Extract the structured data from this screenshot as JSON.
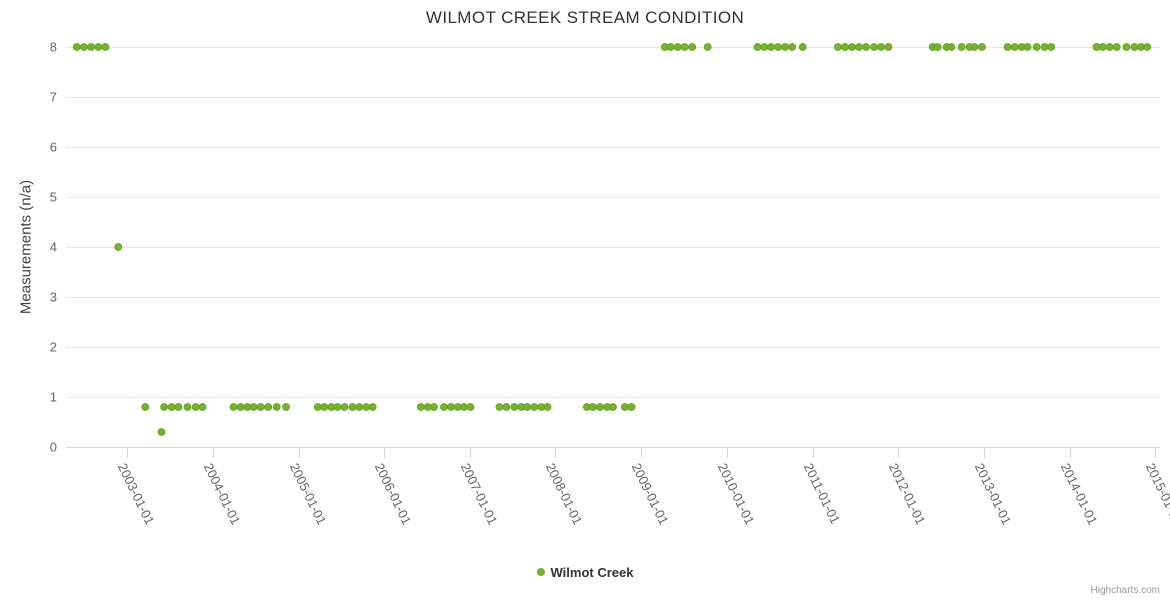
{
  "title": "WILMOT CREEK STREAM CONDITION",
  "y_axis": {
    "title": "Measurements (n/a)",
    "ticks": [
      0,
      1,
      2,
      3,
      4,
      5,
      6,
      7,
      8
    ]
  },
  "x_axis": {
    "tick_labels": [
      "2003-01-01",
      "2004-01-01",
      "2005-01-01",
      "2006-01-01",
      "2007-01-01",
      "2008-01-01",
      "2009-01-01",
      "2010-01-01",
      "2011-01-01",
      "2012-01-01",
      "2013-01-01",
      "2014-01-01",
      "2015-01-01"
    ]
  },
  "legend": {
    "label": "Wilmot Creek"
  },
  "credits": "Highcharts.com",
  "colors": {
    "point_fill": "#74b32b",
    "point_stroke": "#639a22",
    "grid_line": "#e6e6e6",
    "axis_line": "#ccd6eb",
    "title_text": "#333333",
    "axis_label": "#666666",
    "credits_text": "#999999"
  },
  "chart_data": {
    "type": "scatter",
    "title": "WILMOT CREEK STREAM CONDITION",
    "xlabel": "",
    "ylabel": "Measurements (n/a)",
    "ylim": [
      0,
      8
    ],
    "xlim": [
      "2002-04-17",
      "2015-01-19"
    ],
    "grid": true,
    "legend_position": "bottom-center",
    "series": [
      {
        "name": "Wilmot Creek",
        "color": "#74b32b",
        "points": [
          [
            "2002-06-01",
            8
          ],
          [
            "2002-07-01",
            8
          ],
          [
            "2002-08-01",
            8
          ],
          [
            "2002-09-01",
            8
          ],
          [
            "2002-10-01",
            8
          ],
          [
            "2002-11-25",
            4
          ],
          [
            "2003-03-20",
            0.8
          ],
          [
            "2003-05-28",
            0.3
          ],
          [
            "2003-06-08",
            0.8
          ],
          [
            "2003-07-10",
            0.8
          ],
          [
            "2003-08-08",
            0.8
          ],
          [
            "2003-09-16",
            0.8
          ],
          [
            "2003-10-21",
            0.8
          ],
          [
            "2003-11-19",
            0.8
          ],
          [
            "2004-03-30",
            0.8
          ],
          [
            "2004-04-29",
            0.8
          ],
          [
            "2004-05-28",
            0.8
          ],
          [
            "2004-06-24",
            0.8
          ],
          [
            "2004-07-24",
            0.8
          ],
          [
            "2004-08-25",
            0.8
          ],
          [
            "2004-09-30",
            0.8
          ],
          [
            "2004-11-09",
            0.8
          ],
          [
            "2005-03-24",
            0.8
          ],
          [
            "2005-04-21",
            0.8
          ],
          [
            "2005-05-21",
            0.8
          ],
          [
            "2005-06-16",
            0.8
          ],
          [
            "2005-07-16",
            0.8
          ],
          [
            "2005-08-19",
            0.8
          ],
          [
            "2005-09-17",
            0.8
          ],
          [
            "2005-10-17",
            0.8
          ],
          [
            "2005-11-13",
            0.8
          ],
          [
            "2006-06-06",
            0.8
          ],
          [
            "2006-07-06",
            0.8
          ],
          [
            "2006-08-01",
            0.8
          ],
          [
            "2006-09-13",
            0.8
          ],
          [
            "2006-10-13",
            0.8
          ],
          [
            "2006-11-11",
            0.8
          ],
          [
            "2006-12-07",
            0.8
          ],
          [
            "2007-01-04",
            0.8
          ],
          [
            "2007-05-07",
            0.8
          ],
          [
            "2007-06-06",
            0.8
          ],
          [
            "2007-07-10",
            0.8
          ],
          [
            "2007-08-09",
            0.8
          ],
          [
            "2007-09-03",
            0.8
          ],
          [
            "2007-10-03",
            0.8
          ],
          [
            "2007-11-02",
            0.8
          ],
          [
            "2007-11-28",
            0.8
          ],
          [
            "2008-05-14",
            0.8
          ],
          [
            "2008-06-09",
            0.8
          ],
          [
            "2008-07-09",
            0.8
          ],
          [
            "2008-08-08",
            0.8
          ],
          [
            "2008-09-02",
            0.8
          ],
          [
            "2008-10-23",
            0.8
          ],
          [
            "2008-11-20",
            0.8
          ],
          [
            "2009-04-11",
            8
          ],
          [
            "2009-05-06",
            8
          ],
          [
            "2009-06-05",
            8
          ],
          [
            "2009-07-05",
            8
          ],
          [
            "2009-08-06",
            8
          ],
          [
            "2009-10-11",
            8
          ],
          [
            "2010-05-11",
            8
          ],
          [
            "2010-06-10",
            8
          ],
          [
            "2010-07-08",
            8
          ],
          [
            "2010-08-07",
            8
          ],
          [
            "2010-09-06",
            8
          ],
          [
            "2010-10-06",
            8
          ],
          [
            "2010-11-20",
            8
          ],
          [
            "2011-04-19",
            8
          ],
          [
            "2011-05-19",
            8
          ],
          [
            "2011-06-18",
            8
          ],
          [
            "2011-07-18",
            8
          ],
          [
            "2011-08-17",
            8
          ],
          [
            "2011-09-20",
            8
          ],
          [
            "2011-10-20",
            8
          ],
          [
            "2011-11-20",
            8
          ],
          [
            "2012-05-27",
            8
          ],
          [
            "2012-06-17",
            8
          ],
          [
            "2012-07-25",
            8
          ],
          [
            "2012-08-15",
            8
          ],
          [
            "2012-09-27",
            8
          ],
          [
            "2012-10-31",
            8
          ],
          [
            "2012-11-21",
            8
          ],
          [
            "2012-12-23",
            8
          ],
          [
            "2013-04-11",
            8
          ],
          [
            "2013-05-11",
            8
          ],
          [
            "2013-06-10",
            8
          ],
          [
            "2013-07-05",
            8
          ],
          [
            "2013-08-13",
            8
          ],
          [
            "2013-09-16",
            8
          ],
          [
            "2013-10-14",
            8
          ],
          [
            "2014-04-25",
            8
          ],
          [
            "2014-05-21",
            8
          ],
          [
            "2014-06-20",
            8
          ],
          [
            "2014-07-20",
            8
          ],
          [
            "2014-08-31",
            8
          ],
          [
            "2014-10-04",
            8
          ],
          [
            "2014-11-01",
            8
          ],
          [
            "2014-11-27",
            8
          ]
        ]
      }
    ]
  }
}
